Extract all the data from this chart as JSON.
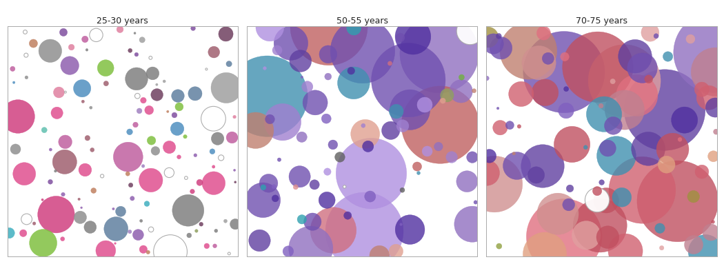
{
  "panels": [
    {
      "title": "25-30 years",
      "seed": 42,
      "n_bubbles": 200,
      "size_distribution": [
        {
          "min_r": 0.055,
          "max_r": 0.085,
          "count": 8
        },
        {
          "min_r": 0.03,
          "max_r": 0.055,
          "count": 25
        },
        {
          "min_r": 0.012,
          "max_r": 0.03,
          "count": 60
        },
        {
          "min_r": 0.004,
          "max_r": 0.012,
          "count": 107
        }
      ],
      "colors": [
        "#e05090",
        "#d04080",
        "#e080a0",
        "#c060a0",
        "#9060b0",
        "#8050a0",
        "#a080c0",
        "#808080",
        "#909090",
        "#a0a0a0",
        "#5090c0",
        "#40b0c0",
        "#60c0b0",
        "#6080a0",
        "#a06070",
        "#704060",
        "#90a060",
        "#80c040",
        "#c08060",
        "#ffffff"
      ],
      "color_weights": [
        0.13,
        0.06,
        0.08,
        0.05,
        0.06,
        0.04,
        0.04,
        0.06,
        0.04,
        0.03,
        0.04,
        0.03,
        0.02,
        0.04,
        0.05,
        0.04,
        0.02,
        0.02,
        0.02,
        0.11
      ],
      "overlap_factor": 0.05,
      "alpha": 0.85
    },
    {
      "title": "50-55 years",
      "seed": 137,
      "n_bubbles": 120,
      "size_distribution": [
        {
          "min_r": 0.1,
          "max_r": 0.18,
          "count": 10
        },
        {
          "min_r": 0.06,
          "max_r": 0.1,
          "count": 20
        },
        {
          "min_r": 0.025,
          "max_r": 0.06,
          "count": 40
        },
        {
          "min_r": 0.005,
          "max_r": 0.025,
          "count": 50
        }
      ],
      "colors": [
        "#7050b0",
        "#6040a0",
        "#8060c0",
        "#5030a0",
        "#9070c0",
        "#a080d0",
        "#b090e0",
        "#4090b0",
        "#30a0b0",
        "#50b0a0",
        "#c06060",
        "#d07080",
        "#e09090",
        "#c08070",
        "#e0a090",
        "#606060",
        "#808080",
        "#90a060",
        "#70b040",
        "#ffffff"
      ],
      "color_weights": [
        0.18,
        0.12,
        0.1,
        0.08,
        0.07,
        0.06,
        0.05,
        0.04,
        0.03,
        0.02,
        0.04,
        0.03,
        0.02,
        0.03,
        0.02,
        0.02,
        0.02,
        0.01,
        0.01,
        0.05
      ],
      "overlap_factor": 0.5,
      "alpha": 0.8
    },
    {
      "title": "70-75 years",
      "seed": 271,
      "n_bubbles": 100,
      "size_distribution": [
        {
          "min_r": 0.1,
          "max_r": 0.2,
          "count": 12
        },
        {
          "min_r": 0.06,
          "max_r": 0.1,
          "count": 22
        },
        {
          "min_r": 0.025,
          "max_r": 0.06,
          "count": 36
        },
        {
          "min_r": 0.005,
          "max_r": 0.025,
          "count": 30
        }
      ],
      "colors": [
        "#7050b0",
        "#6040a0",
        "#8060c0",
        "#5030a0",
        "#9070c0",
        "#c05060",
        "#d06070",
        "#e07080",
        "#c08090",
        "#e0a0a0",
        "#d09090",
        "#c08070",
        "#e0a080",
        "#d0b090",
        "#4090b0",
        "#30a0b0",
        "#90a040",
        "#708020",
        "#a09040",
        "#ffffff"
      ],
      "color_weights": [
        0.15,
        0.1,
        0.08,
        0.06,
        0.05,
        0.1,
        0.06,
        0.05,
        0.07,
        0.04,
        0.04,
        0.03,
        0.04,
        0.03,
        0.03,
        0.02,
        0.02,
        0.01,
        0.01,
        0.01
      ],
      "overlap_factor": 0.7,
      "alpha": 0.8
    }
  ],
  "bg_color": "#ffffff",
  "title_fontsize": 9,
  "title_color": "#222222",
  "border_color": "#aaaaaa",
  "linewidth_filled": 0.3,
  "linewidth_empty": 0.8
}
